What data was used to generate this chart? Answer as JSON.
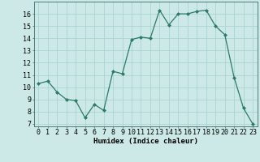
{
  "x": [
    0,
    1,
    2,
    3,
    4,
    5,
    6,
    7,
    8,
    9,
    10,
    11,
    12,
    13,
    14,
    15,
    16,
    17,
    18,
    19,
    20,
    21,
    22,
    23
  ],
  "y": [
    10.3,
    10.5,
    9.6,
    9.0,
    8.9,
    7.5,
    8.6,
    8.1,
    11.3,
    11.1,
    13.9,
    14.1,
    14.0,
    16.3,
    15.1,
    16.0,
    16.0,
    16.2,
    16.3,
    15.0,
    14.3,
    10.8,
    8.3,
    7.0
  ],
  "line_color": "#2d7a68",
  "marker": "D",
  "marker_size": 2.0,
  "bg_color": "#cce9e7",
  "grid_color": "#aad4d0",
  "xlabel": "Humidex (Indice chaleur)",
  "xlim": [
    -0.5,
    23.5
  ],
  "ylim": [
    6.8,
    17.0
  ],
  "yticks": [
    7,
    8,
    9,
    10,
    11,
    12,
    13,
    14,
    15,
    16
  ],
  "label_fontsize": 6.5,
  "tick_fontsize": 6.0
}
